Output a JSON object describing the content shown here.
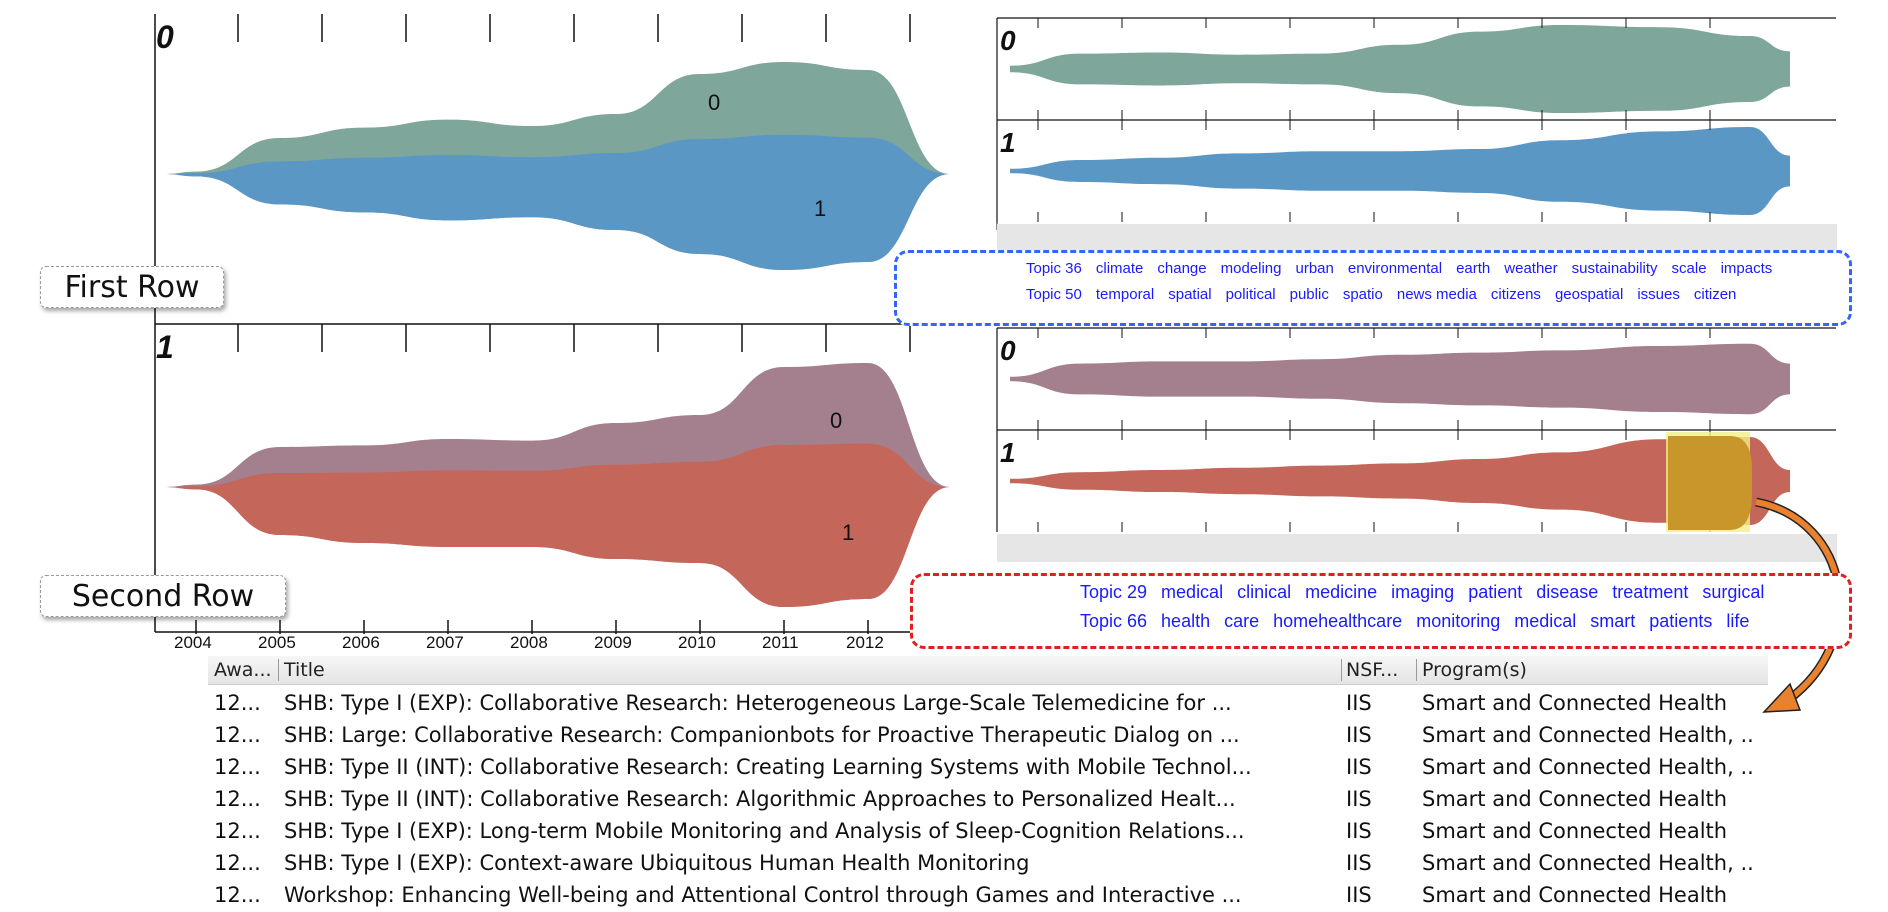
{
  "colors": {
    "topic_0_first_row": "#7ea69a",
    "topic_1_first_row": "#5b97c5",
    "topic_0_second_row": "#a47f8e",
    "topic_1_second_row": "#c4675a",
    "highlight": "#c8962a",
    "legend_first_border": "#3366ff",
    "legend_second_border": "#e02020",
    "arrow": "#e8822e",
    "keyword_text": "#1a1aff"
  },
  "row_labels": {
    "first": "First Row",
    "second": "Second Row"
  },
  "chart_data": [
    {
      "type": "area",
      "title": "",
      "x": [
        2004,
        2005,
        2006,
        2007,
        2008,
        2009,
        2010,
        2011,
        2012
      ],
      "xtick_labels": [
        "2004",
        "2005",
        "2006",
        "2007",
        "2008",
        "2009",
        "2010",
        "2011",
        "2012"
      ],
      "row_index_label": "0",
      "stacked": true,
      "series": [
        {
          "name": "0",
          "values": [
            0.3,
            4.5,
            5.8,
            6.8,
            6.0,
            7.5,
            12.5,
            14.0,
            13.0
          ]
        },
        {
          "name": "1",
          "values": [
            0.3,
            3.8,
            4.8,
            5.8,
            5.4,
            7.0,
            10.0,
            12.0,
            11.0
          ]
        }
      ]
    },
    {
      "type": "area",
      "title": "",
      "x": [
        2004,
        2005,
        2006,
        2007,
        2008,
        2009,
        2010,
        2011,
        2012
      ],
      "row_index_label": "1",
      "stacked": true,
      "series": [
        {
          "name": "0",
          "values": [
            0.3,
            5.0,
            5.2,
            6.0,
            5.8,
            8.0,
            9.0,
            15.0,
            15.5
          ]
        },
        {
          "name": "1",
          "values": [
            0.3,
            6.0,
            7.0,
            7.5,
            7.5,
            9.0,
            9.5,
            15.0,
            14.0
          ]
        }
      ]
    }
  ],
  "legend_first_row": {
    "lines": [
      {
        "topic": "Topic 36",
        "words": [
          "climate",
          "change",
          "modeling",
          "urban",
          "environmental",
          "earth",
          "weather",
          "sustainability",
          "scale",
          "impacts"
        ]
      },
      {
        "topic": "Topic 50",
        "words": [
          "temporal",
          "spatial",
          "political",
          "public",
          "spatio",
          "news media",
          "citizens",
          "geospatial",
          "issues",
          "citizen"
        ]
      }
    ]
  },
  "legend_second_row": {
    "lines": [
      {
        "topic": "Topic 29",
        "words": [
          "medical",
          "clinical",
          "medicine",
          "imaging",
          "patient",
          "disease",
          "treatment",
          "surgical"
        ]
      },
      {
        "topic": "Topic 66",
        "words": [
          "health",
          "care",
          "homehealthcare",
          "monitoring",
          "medical",
          "smart",
          "patients",
          "life"
        ]
      }
    ]
  },
  "table": {
    "columns": [
      "Awa...",
      "Title",
      "NSF...",
      "Program(s)"
    ],
    "rows": [
      [
        "12...",
        "SHB: Type I (EXP): Collaborative Research: Heterogeneous Large-Scale Telemedicine for ...",
        "IIS",
        "Smart and Connected Health"
      ],
      [
        "12...",
        "SHB: Large: Collaborative Research: Companionbots for Proactive Therapeutic Dialog on ...",
        "IIS",
        "Smart and Connected Health, .."
      ],
      [
        "12...",
        "SHB: Type II (INT): Collaborative Research: Creating Learning Systems with Mobile Technol...",
        "IIS",
        "Smart and Connected Health, .."
      ],
      [
        "12...",
        "SHB: Type II (INT): Collaborative Research: Algorithmic Approaches to Personalized Healt...",
        "IIS",
        "Smart and Connected Health"
      ],
      [
        "12...",
        "SHB: Type I (EXP): Long-term Mobile Monitoring and Analysis of Sleep-Cognition Relations...",
        "IIS",
        "Smart and Connected Health"
      ],
      [
        "12...",
        "SHB: Type I (EXP): Context-aware Ubiquitous Human Health Monitoring",
        "IIS",
        "Smart and Connected Health, .."
      ],
      [
        "12...",
        "Workshop: Enhancing Well-being and Attentional Control through Games and Interactive ...",
        "IIS",
        "Smart and Connected Health"
      ]
    ]
  }
}
